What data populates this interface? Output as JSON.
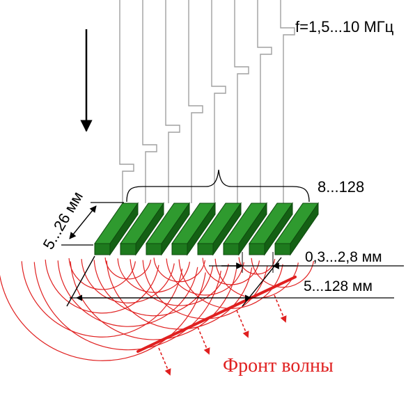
{
  "labels": {
    "frequency": "f=1,5...10 МГц",
    "element_count": "8...128",
    "element_length": "5...26 мм",
    "element_pitch": "0,3...2,8 мм",
    "aperture": "5...128 мм",
    "wave_front": "Фронт волны"
  },
  "colors": {
    "element": "#1e7a1e",
    "wave": "#e02020",
    "wire": "#a0a0a0",
    "text": "#000000"
  },
  "element_count_shown": 8,
  "icons": [
    "down-arrow-icon"
  ]
}
